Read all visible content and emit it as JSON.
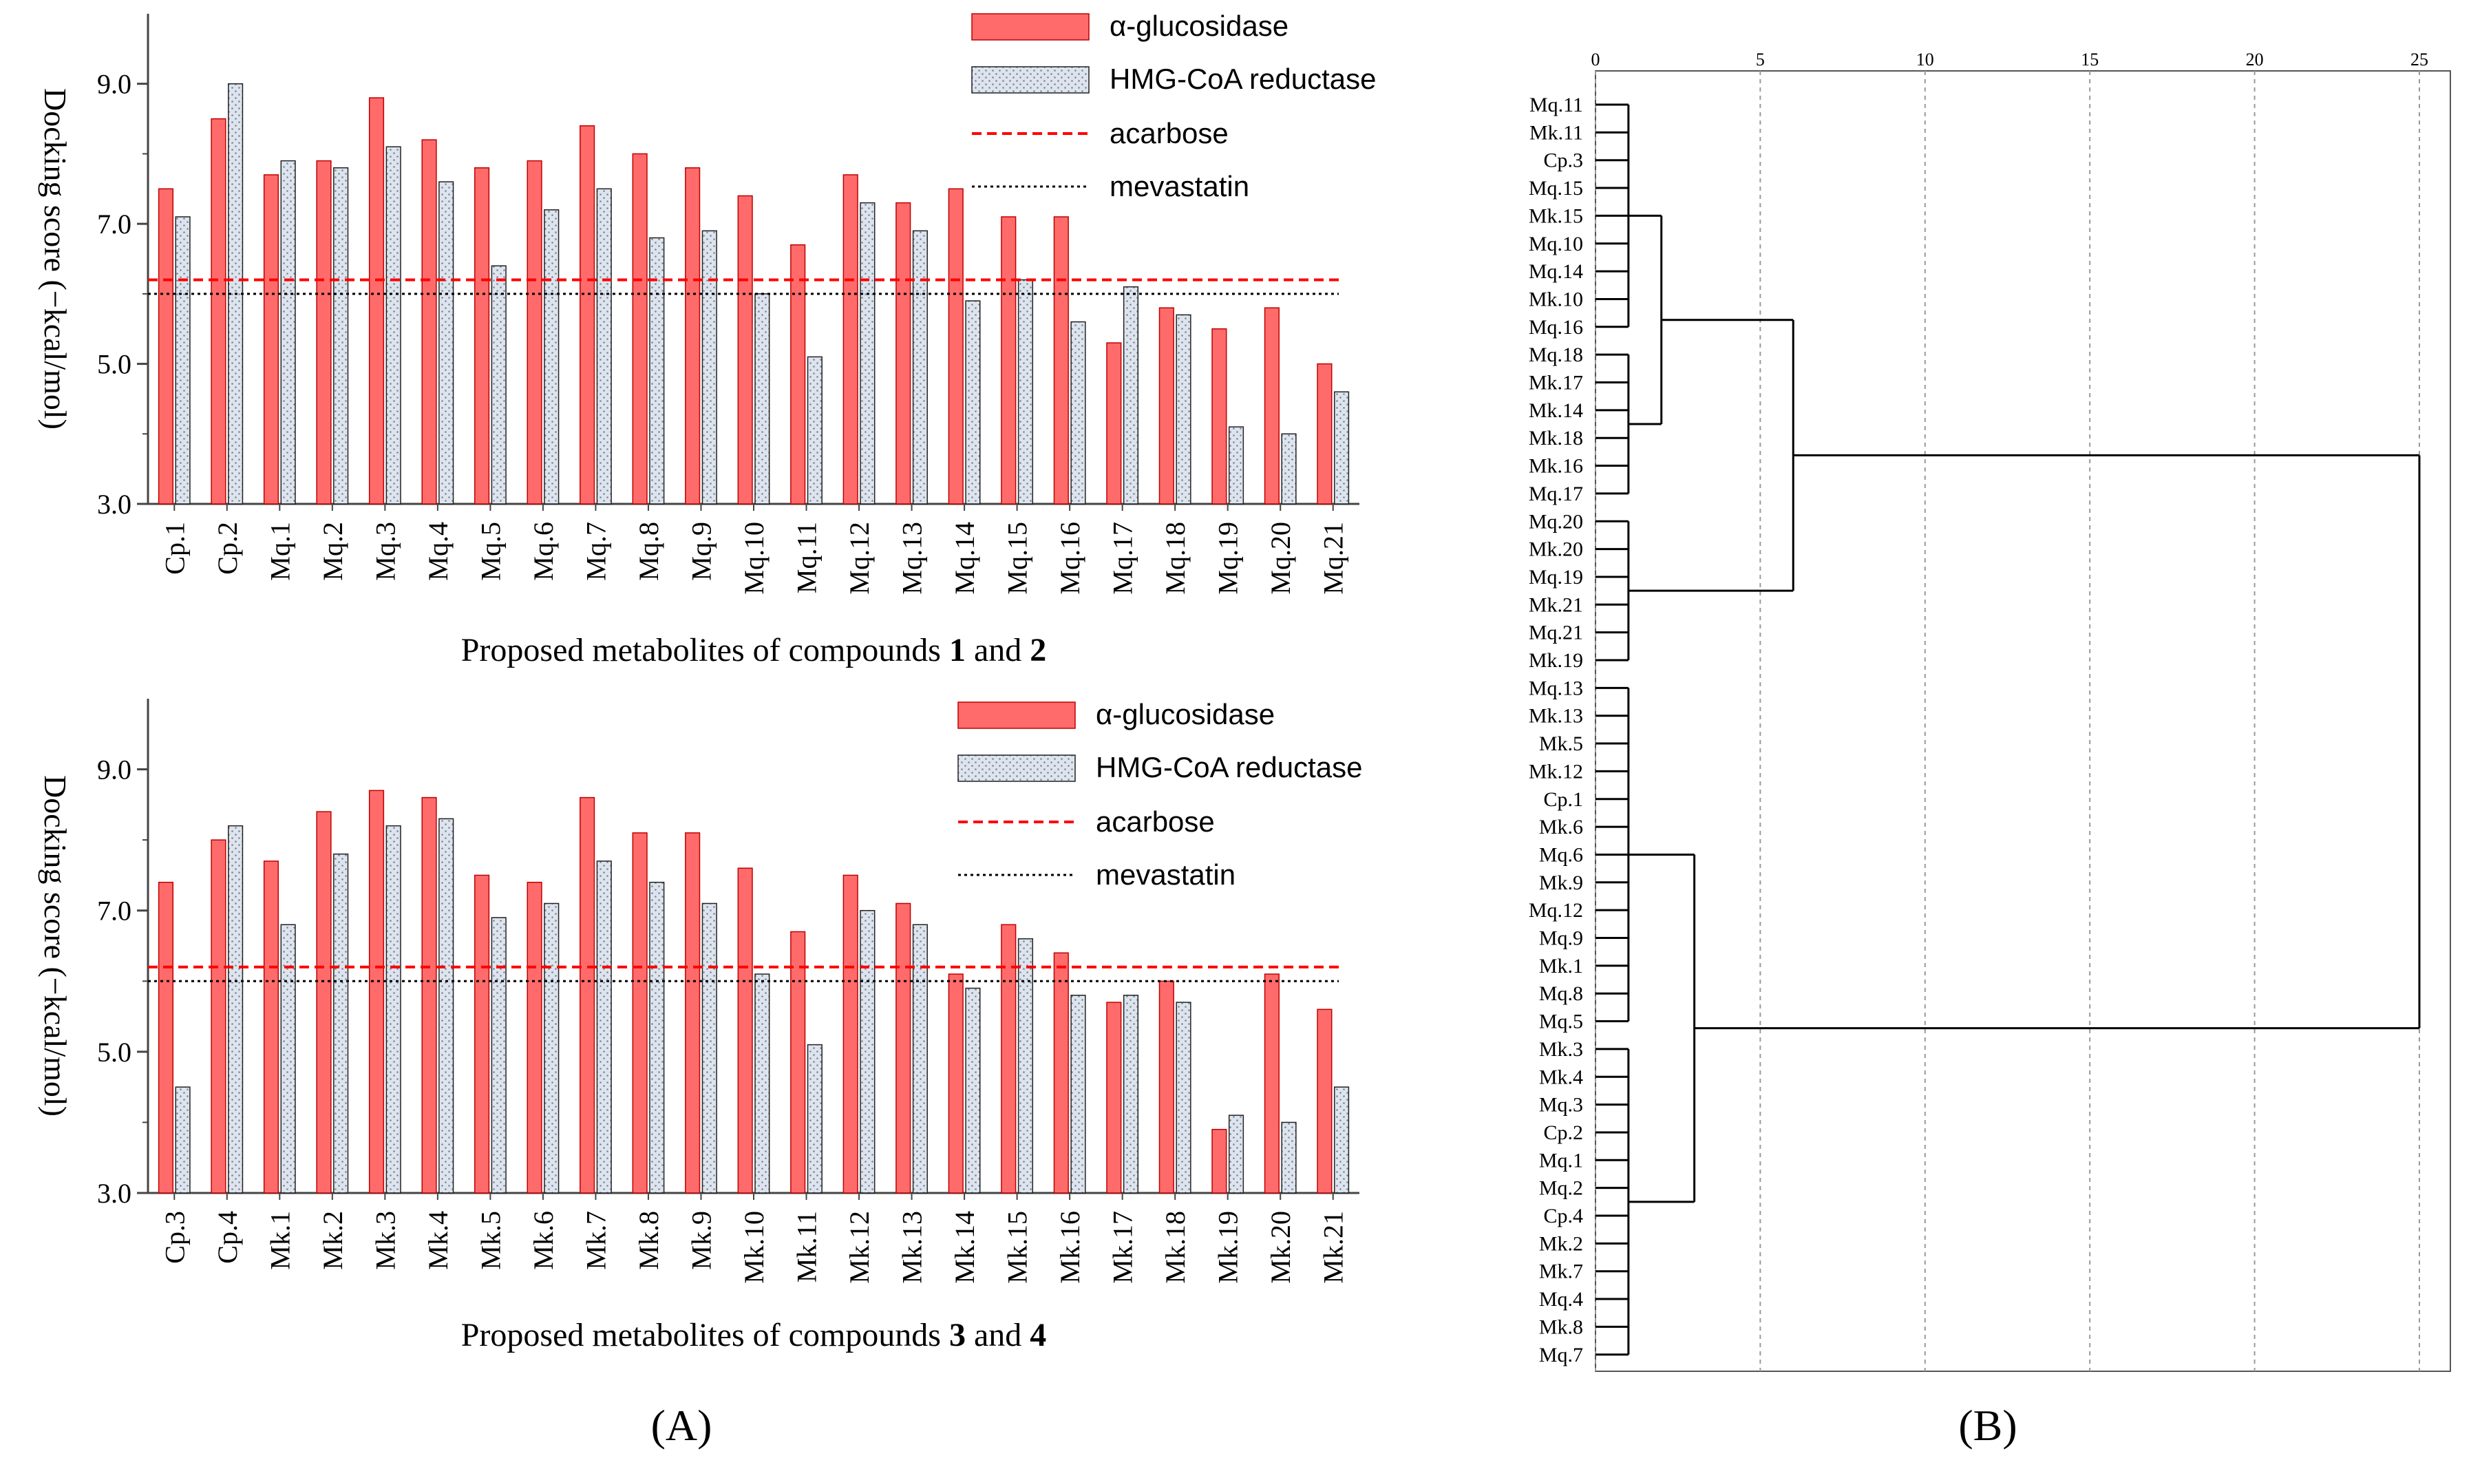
{
  "panel_labels": [
    "(A)",
    "(B)"
  ],
  "colors": {
    "alpha_fill": "#ff6b6b",
    "alpha_stroke": "#c00000",
    "hmg_fill": "#dde4ee",
    "hmg_stroke": "#222222",
    "acarbose_line": "#ff0000",
    "mevastatin_line": "#000000",
    "axis": "#444444",
    "grid": "#999999"
  },
  "chart_data": [
    {
      "id": "top",
      "type": "bar",
      "title": "",
      "xlabel_parts": [
        {
          "text": "Proposed metabolites of compounds ",
          "bold": false
        },
        {
          "text": "1",
          "bold": true
        },
        {
          "text": " and ",
          "bold": false
        },
        {
          "text": "2",
          "bold": true
        }
      ],
      "ylabel": "Docking score (−kcal/mol)",
      "ylim": [
        3.0,
        10.0
      ],
      "yticks": [
        "3.0",
        "5.0",
        "7.0",
        "9.0"
      ],
      "categories": [
        "Cp.1",
        "Cp.2",
        "Mq.1",
        "Mq.2",
        "Mq.3",
        "Mq.4",
        "Mq.5",
        "Mq.6",
        "Mq.7",
        "Mq.8",
        "Mq.9",
        "Mq.10",
        "Mq.11",
        "Mq.12",
        "Mq.13",
        "Mq.14",
        "Mq.15",
        "Mq.16",
        "Mq.17",
        "Mq.18",
        "Mq.19",
        "Mq.20",
        "Mq.21"
      ],
      "series": [
        {
          "name": "α-glucosidase",
          "values": [
            7.5,
            8.5,
            7.7,
            7.9,
            8.8,
            8.2,
            7.8,
            7.9,
            8.4,
            8.0,
            7.8,
            7.4,
            6.7,
            7.7,
            7.3,
            7.5,
            7.1,
            7.1,
            5.3,
            5.8,
            5.5,
            5.8,
            5.0
          ]
        },
        {
          "name": "HMG-CoA reductase",
          "values": [
            7.1,
            9.0,
            7.9,
            7.8,
            8.1,
            7.6,
            6.4,
            7.2,
            7.5,
            6.8,
            6.9,
            6.0,
            5.1,
            7.3,
            6.9,
            5.9,
            6.2,
            5.6,
            6.1,
            5.7,
            4.1,
            4.0,
            4.6
          ]
        }
      ],
      "reference_lines": [
        {
          "name": "acarbose",
          "value": 6.2
        },
        {
          "name": "mevastatin",
          "value": 6.0
        }
      ],
      "legend_position": "top-right"
    },
    {
      "id": "bottom",
      "type": "bar",
      "title": "",
      "xlabel_parts": [
        {
          "text": "Proposed metabolites of compounds ",
          "bold": false
        },
        {
          "text": "3",
          "bold": true
        },
        {
          "text": " and ",
          "bold": false
        },
        {
          "text": "4",
          "bold": true
        }
      ],
      "ylabel": "Docking score (−kcal/mol)",
      "ylim": [
        3.0,
        10.0
      ],
      "yticks": [
        "3.0",
        "5.0",
        "7.0",
        "9.0"
      ],
      "categories": [
        "Cp.3",
        "Cp.4",
        "Mk.1",
        "Mk.2",
        "Mk.3",
        "Mk.4",
        "Mk.5",
        "Mk.6",
        "Mk.7",
        "Mk.8",
        "Mk.9",
        "Mk.10",
        "Mk.11",
        "Mk.12",
        "Mk.13",
        "Mk.14",
        "Mk.15",
        "Mk.16",
        "Mk.17",
        "Mk.18",
        "Mk.19",
        "Mk.20",
        "Mk.21"
      ],
      "series": [
        {
          "name": "α-glucosidase",
          "values": [
            7.4,
            8.0,
            7.7,
            8.4,
            8.7,
            8.6,
            7.5,
            7.4,
            8.6,
            8.1,
            8.1,
            7.6,
            6.7,
            7.5,
            7.1,
            6.1,
            6.8,
            6.4,
            5.7,
            6.0,
            3.9,
            6.1,
            5.6
          ]
        },
        {
          "name": "HMG-CoA reductase",
          "values": [
            4.5,
            8.2,
            6.8,
            7.8,
            8.2,
            8.3,
            6.9,
            7.1,
            7.7,
            7.4,
            7.1,
            6.1,
            5.1,
            7.0,
            6.8,
            5.9,
            6.6,
            5.8,
            5.8,
            5.7,
            4.1,
            4.0,
            4.5
          ]
        }
      ],
      "reference_lines": [
        {
          "name": "acarbose",
          "value": 6.2
        },
        {
          "name": "mevastatin",
          "value": 6.0
        }
      ],
      "legend_position": "top-right"
    },
    {
      "id": "dendrogram",
      "type": "dendrogram",
      "title": "",
      "xticks": [
        "0",
        "5",
        "10",
        "15",
        "20",
        "25"
      ],
      "xlim": [
        0,
        25
      ],
      "leaves": [
        "Mq.11",
        "Mk.11",
        "Cp.3",
        "Mq.15",
        "Mk.15",
        "Mq.10",
        "Mq.14",
        "Mk.10",
        "Mq.16",
        "Mq.18",
        "Mk.17",
        "Mk.14",
        "Mk.18",
        "Mk.16",
        "Mq.17",
        "Mq.20",
        "Mk.20",
        "Mq.19",
        "Mk.21",
        "Mq.21",
        "Mk.19",
        "Mq.13",
        "Mk.13",
        "Mk.5",
        "Mk.12",
        "Cp.1",
        "Mk.6",
        "Mq.6",
        "Mk.9",
        "Mq.12",
        "Mq.9",
        "Mk.1",
        "Mq.8",
        "Mq.5",
        "Mk.3",
        "Mk.4",
        "Mq.3",
        "Cp.2",
        "Mq.1",
        "Mq.2",
        "Cp.4",
        "Mk.2",
        "Mk.7",
        "Mq.4",
        "Mk.8",
        "Mq.7"
      ],
      "clusters": [
        {
          "leaf_range": [
            0,
            8
          ],
          "distance": 1
        },
        {
          "leaf_range": [
            9,
            14
          ],
          "distance": 1
        },
        {
          "leaf_range": [
            15,
            20
          ],
          "distance": 1
        },
        {
          "leaf_range": [
            21,
            33
          ],
          "distance": 1
        },
        {
          "leaf_range": [
            34,
            45
          ],
          "distance": 1
        }
      ],
      "merges": [
        {
          "children": [
            "c0",
            "c1"
          ],
          "distance": 2,
          "name": "m1"
        },
        {
          "children": [
            "m1",
            "c2"
          ],
          "distance": 6,
          "name": "m2"
        },
        {
          "children": [
            "c3",
            "c4"
          ],
          "distance": 3,
          "name": "m3"
        },
        {
          "children": [
            "m2",
            "m3"
          ],
          "distance": 25,
          "name": "m4"
        }
      ]
    }
  ]
}
